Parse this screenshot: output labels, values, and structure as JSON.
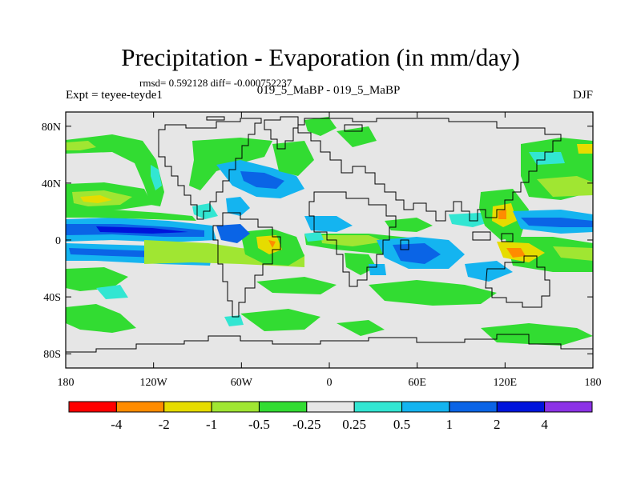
{
  "title": "Precipitation - Evaporation (in mm/day)",
  "stats": "rmsd= 0.592128 diff= -0.000752237",
  "left_label": "Expt = teyee-teyde1",
  "center_label": "019_5_MaBP - 019_5_MaBP",
  "right_label": "DJF",
  "lat_ticks": [
    {
      "label": "80N",
      "lat": 80
    },
    {
      "label": "40N",
      "lat": 40
    },
    {
      "label": "0",
      "lat": 0
    },
    {
      "label": "40S",
      "lat": -40
    },
    {
      "label": "80S",
      "lat": -80
    }
  ],
  "lon_ticks": [
    {
      "label": "180",
      "lon": -180
    },
    {
      "label": "120W",
      "lon": -120
    },
    {
      "label": "60W",
      "lon": -60
    },
    {
      "label": "0",
      "lon": 0
    },
    {
      "label": "60E",
      "lon": 60
    },
    {
      "label": "120E",
      "lon": 120
    },
    {
      "label": "180",
      "lon": 180
    }
  ],
  "lat_range": [
    -90,
    90
  ],
  "lon_range": [
    -180,
    180
  ],
  "colorbar": {
    "colors": [
      "#ff0000",
      "#ff8c00",
      "#e6dc00",
      "#a0e632",
      "#32dc32",
      "#e6e6e6",
      "#32e6d2",
      "#14b4f0",
      "#0a64e6",
      "#0014dc",
      "#8c32e6"
    ],
    "labels": [
      "-4",
      "-2",
      "-1",
      "-0.5",
      "-0.25",
      "0.25",
      "0.5",
      "1",
      "2",
      "4"
    ]
  },
  "colors": {
    "background": "#e6e6e6",
    "coast": "#000000"
  }
}
